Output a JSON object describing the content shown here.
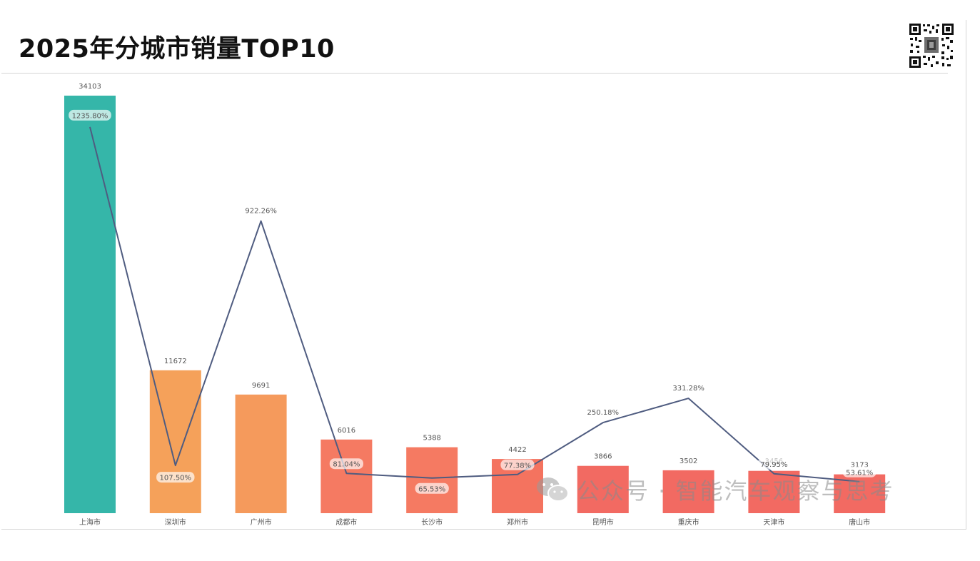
{
  "header": {
    "title": "2025年分城市销量TOP10"
  },
  "watermark": {
    "text": "公众号 · 智能汽车观察与思考",
    "icon": "wechat-icon"
  },
  "colors": {
    "teal": "#35B6A9",
    "orange": "#F5A15A",
    "salmon": "#F57A62",
    "red": "#F26A62",
    "line": "#4F5C80",
    "label_text": "#555555"
  },
  "chart_data": {
    "type": "bar",
    "title": "2025年分城市销量TOP10",
    "categories": [
      "上海市",
      "深圳市",
      "广州市",
      "成都市",
      "长沙市",
      "郑州市",
      "昆明市",
      "重庆市",
      "天津市",
      "唐山市"
    ],
    "series": [
      {
        "type": "bar",
        "values": [
          34103,
          11672,
          9691,
          6016,
          5388,
          4422,
          3866,
          3502,
          3456,
          3173
        ],
        "colors": [
          "#35B6A9",
          "#F5A15A",
          "#F59A5C",
          "#F57A62",
          "#F57A62",
          "#F4735F",
          "#F26A62",
          "#F26A62",
          "#F26A62",
          "#F26A62"
        ]
      },
      {
        "type": "line",
        "values": [
          1235.8,
          107.5,
          922.26,
          81.04,
          65.53,
          77.38,
          250.18,
          331.28,
          79.95,
          53.61
        ],
        "labels": [
          "1235.80%",
          "107.50%",
          "922.26%",
          "81.04%",
          "65.53%",
          "77.38%",
          "250.18%",
          "331.28%",
          "79.95%",
          "53.61%"
        ]
      }
    ],
    "y_bar_range": [
      0,
      34103
    ],
    "y_line_range": [
      0,
      1300
    ],
    "legend": "none",
    "grid": false
  }
}
